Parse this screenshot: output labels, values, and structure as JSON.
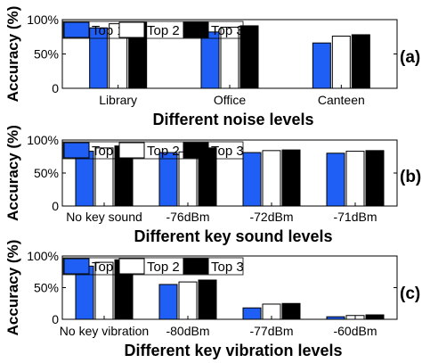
{
  "colors": {
    "top1": "#1f5ff5",
    "top2": "#ffffff",
    "top3": "#000000"
  },
  "chart_data": [
    {
      "type": "bar",
      "panel_label": "(a)",
      "ylabel": "Accuracy (%)",
      "xlabel": "Different noise levels",
      "ylim": [
        0,
        100
      ],
      "yticks": [
        "0",
        "50%",
        "100%"
      ],
      "legend": [
        "Top 1",
        "Top 2",
        "Top 3"
      ],
      "categories": [
        "Library",
        "Office",
        "Canteen"
      ],
      "series": [
        {
          "name": "Top 1",
          "values": [
            88,
            82,
            66
          ]
        },
        {
          "name": "Top 2",
          "values": [
            94,
            89,
            76
          ]
        },
        {
          "name": "Top 3",
          "values": [
            96,
            91,
            78
          ]
        }
      ]
    },
    {
      "type": "bar",
      "panel_label": "(b)",
      "ylabel": "Accuracy (%)",
      "xlabel": "Different key sound levels",
      "ylim": [
        0,
        100
      ],
      "yticks": [
        "0",
        "50%",
        "100%"
      ],
      "legend": [
        "Top 1",
        "Top 2",
        "Top 3"
      ],
      "categories": [
        "No key sound",
        "-76dBm",
        "-72dBm",
        "-71dBm"
      ],
      "series": [
        {
          "name": "Top 1",
          "values": [
            83,
            81,
            81,
            80
          ]
        },
        {
          "name": "Top 2",
          "values": [
            88,
            82,
            84,
            83
          ]
        },
        {
          "name": "Top 3",
          "values": [
            91,
            88,
            85,
            84
          ]
        }
      ]
    },
    {
      "type": "bar",
      "panel_label": "(c)",
      "ylabel": "Accuracy (%)",
      "xlabel": "Different key vibration levels",
      "ylim": [
        0,
        100
      ],
      "yticks": [
        "0",
        "50%",
        "100%"
      ],
      "legend": [
        "Top 1",
        "Top 2",
        "Top 3"
      ],
      "categories": [
        "No key vibration",
        "-80dBm",
        "-77dBm",
        "-60dBm"
      ],
      "series": [
        {
          "name": "Top 1",
          "values": [
            84,
            55,
            18,
            4
          ]
        },
        {
          "name": "Top 2",
          "values": [
            90,
            59,
            24,
            6
          ]
        },
        {
          "name": "Top 3",
          "values": [
            94,
            62,
            25,
            7
          ]
        }
      ]
    }
  ]
}
